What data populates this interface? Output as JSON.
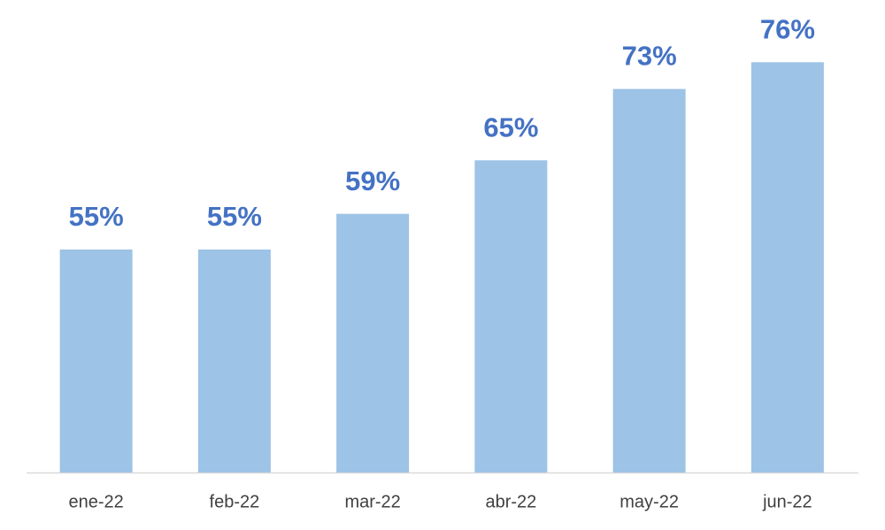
{
  "chart_data": {
    "type": "bar",
    "categories": [
      "ene-22",
      "feb-22",
      "mar-22",
      "abr-22",
      "may-22",
      "jun-22"
    ],
    "values": [
      55,
      55,
      59,
      65,
      73,
      76
    ],
    "value_labels": [
      "55%",
      "55%",
      "59%",
      "65%",
      "73%",
      "76%"
    ],
    "color": "#9dc3e6",
    "label_color": "#4472c4",
    "ylim": [
      30,
      80
    ]
  }
}
